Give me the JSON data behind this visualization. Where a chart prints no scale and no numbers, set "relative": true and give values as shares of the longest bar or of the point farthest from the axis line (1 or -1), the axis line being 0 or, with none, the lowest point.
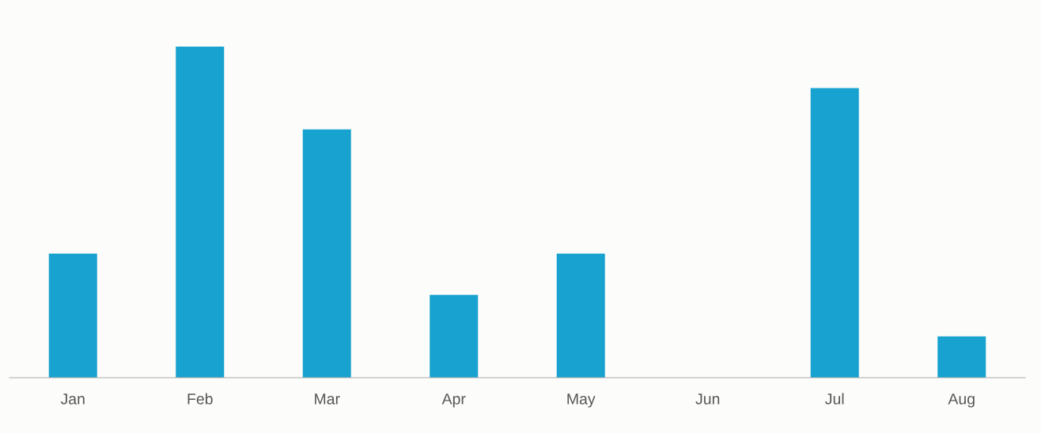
{
  "chart_data": {
    "type": "bar",
    "relative": true,
    "categories": [
      "Jan",
      "Feb",
      "Mar",
      "Apr",
      "May",
      "Jun",
      "Jul",
      "Aug"
    ],
    "values": [
      0.375,
      1,
      0.75,
      0.25,
      0.375,
      0,
      0.875,
      0.125
    ],
    "color": "#17a2cf",
    "grid": false,
    "legend": false
  }
}
